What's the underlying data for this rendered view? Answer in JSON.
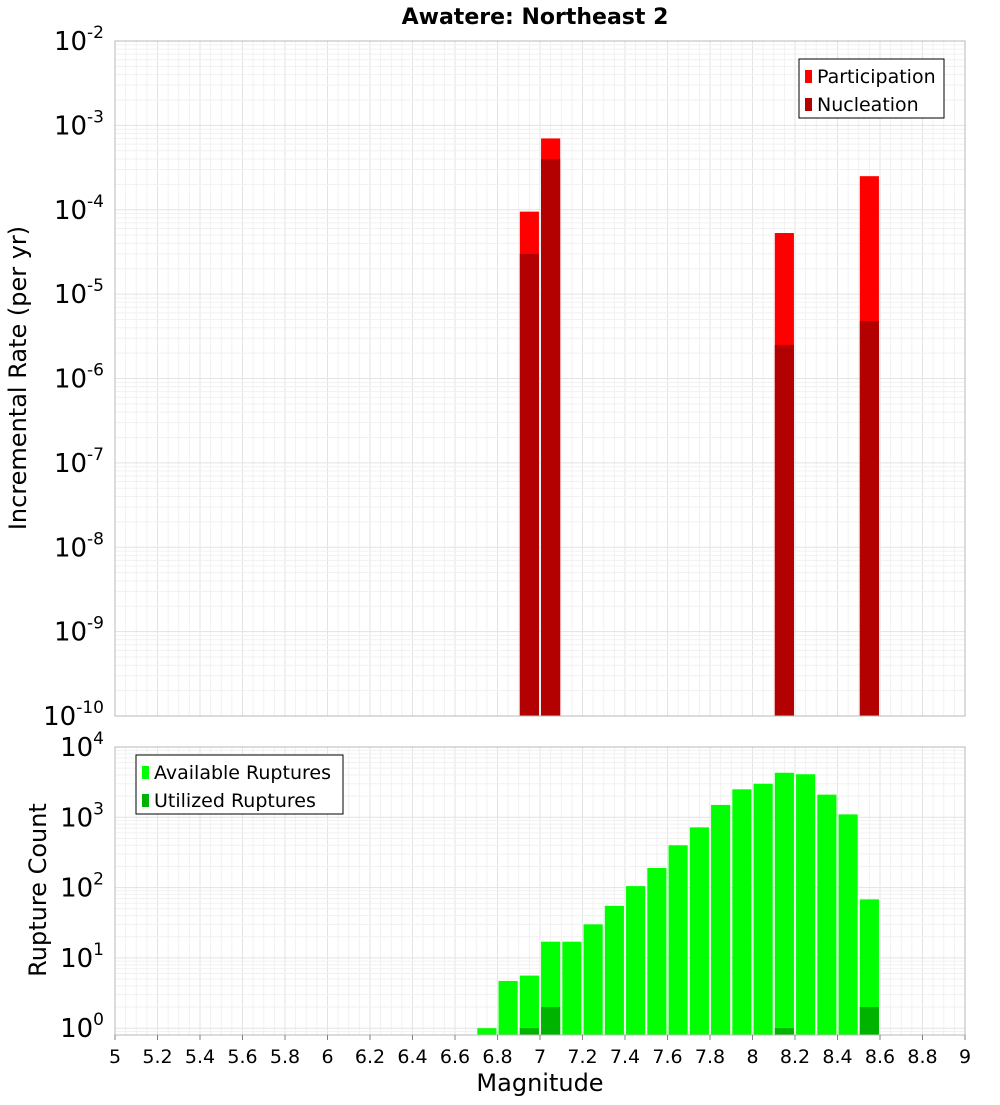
{
  "chart_data": [
    {
      "type": "bar",
      "title": "Awatere: Northeast 2",
      "xlabel": "",
      "ylabel": "Incremental Rate (per yr)",
      "yscale": "log",
      "xlim": [
        5,
        9
      ],
      "ylim_exp": [
        -10,
        -2
      ],
      "legend_position": "top-right",
      "bar_width": 0.09,
      "y_tick_exponents": [
        -10,
        -9,
        -8,
        -7,
        -6,
        -5,
        -4,
        -3,
        -2
      ],
      "series": [
        {
          "name": "Participation",
          "color": "#ff0000",
          "points": [
            {
              "x": 6.95,
              "y": 9.5e-05
            },
            {
              "x": 7.05,
              "y": 0.0007
            },
            {
              "x": 8.15,
              "y": 5.3e-05
            },
            {
              "x": 8.55,
              "y": 0.00025
            }
          ]
        },
        {
          "name": "Nucleation",
          "color": "#b30000",
          "points": [
            {
              "x": 6.95,
              "y": 3e-05
            },
            {
              "x": 7.05,
              "y": 0.0004
            },
            {
              "x": 8.15,
              "y": 2.5e-06
            },
            {
              "x": 8.55,
              "y": 4.8e-06
            }
          ]
        }
      ]
    },
    {
      "type": "bar",
      "xlabel": "Magnitude",
      "ylabel": "Rupture Count",
      "yscale": "log",
      "xlim": [
        5,
        9
      ],
      "ylim": [
        0.8,
        10000
      ],
      "legend_position": "top-left",
      "bar_width": 0.09,
      "y_tick_exponents": [
        0,
        1,
        2,
        3,
        4
      ],
      "x_ticks": [
        "5",
        "5.2",
        "5.4",
        "5.6",
        "5.8",
        "6",
        "6.2",
        "6.4",
        "6.6",
        "6.8",
        "7",
        "7.2",
        "7.4",
        "7.6",
        "7.8",
        "8",
        "8.2",
        "8.4",
        "8.6",
        "8.8",
        "9"
      ],
      "series": [
        {
          "name": "Available Ruptures",
          "color": "#00ff00",
          "points": [
            {
              "x": 6.75,
              "y": 1
            },
            {
              "x": 6.85,
              "y": 4.7
            },
            {
              "x": 6.95,
              "y": 5.6
            },
            {
              "x": 7.05,
              "y": 17
            },
            {
              "x": 7.15,
              "y": 17
            },
            {
              "x": 7.25,
              "y": 30
            },
            {
              "x": 7.35,
              "y": 55
            },
            {
              "x": 7.45,
              "y": 105
            },
            {
              "x": 7.55,
              "y": 190
            },
            {
              "x": 7.65,
              "y": 400
            },
            {
              "x": 7.75,
              "y": 720
            },
            {
              "x": 7.85,
              "y": 1500
            },
            {
              "x": 7.95,
              "y": 2500
            },
            {
              "x": 8.05,
              "y": 3000
            },
            {
              "x": 8.15,
              "y": 4300
            },
            {
              "x": 8.25,
              "y": 4100
            },
            {
              "x": 8.35,
              "y": 2100
            },
            {
              "x": 8.45,
              "y": 1100
            },
            {
              "x": 8.55,
              "y": 68
            }
          ]
        },
        {
          "name": "Utilized Ruptures",
          "color": "#00b300",
          "points": [
            {
              "x": 6.95,
              "y": 1
            },
            {
              "x": 7.05,
              "y": 2
            },
            {
              "x": 8.15,
              "y": 1
            },
            {
              "x": 8.55,
              "y": 2
            }
          ]
        }
      ]
    }
  ]
}
